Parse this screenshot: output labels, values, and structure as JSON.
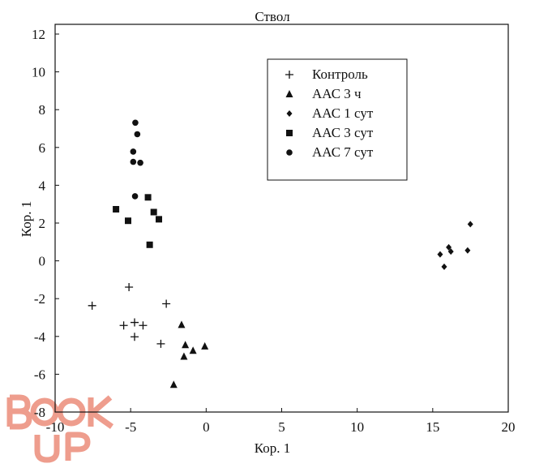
{
  "chart_data": {
    "type": "scatter",
    "title": "Ствол",
    "xlabel": "Кор. 1",
    "ylabel": "Кор. 1",
    "xlim": [
      -10,
      20
    ],
    "ylim": [
      -8,
      12
    ],
    "xticks": [
      -10,
      -5,
      0,
      5,
      10,
      15,
      20
    ],
    "yticks": [
      -8,
      -6,
      -4,
      -2,
      0,
      2,
      4,
      6,
      8,
      10,
      12
    ],
    "grid": false,
    "legend_position": "top-right",
    "series": [
      {
        "name": "Контроль",
        "marker": "plus",
        "x": [
          -5.11,
          -7.55,
          -2.64,
          -5.46,
          -4.74,
          -4.18,
          -4.74,
          -3.0
        ],
        "y": [
          -1.39,
          -2.37,
          -2.27,
          -3.42,
          -3.26,
          -3.42,
          -4.02,
          -4.39
        ]
      },
      {
        "name": "ААС 3 ч",
        "marker": "triangle",
        "x": [
          -1.63,
          -1.38,
          -0.87,
          -0.09,
          -1.47,
          -2.15
        ],
        "y": [
          -3.38,
          -4.45,
          -4.75,
          -4.52,
          -5.06,
          -6.55
        ]
      },
      {
        "name": "ААС 1 сут",
        "marker": "diamond",
        "x": [
          17.49,
          16.06,
          16.2,
          15.49,
          17.31,
          15.76
        ],
        "y": [
          1.94,
          0.72,
          0.49,
          0.34,
          0.55,
          -0.31
        ]
      },
      {
        "name": "ААС 3 сут",
        "marker": "square",
        "x": [
          -3.85,
          -5.97,
          -3.47,
          -3.13,
          -5.17,
          -3.74
        ],
        "y": [
          3.36,
          2.73,
          2.58,
          2.2,
          2.12,
          0.85
        ]
      },
      {
        "name": "ААС 7 сут",
        "marker": "circle",
        "x": [
          -4.69,
          -4.56,
          -4.83,
          -4.83,
          -4.36,
          -4.71
        ],
        "y": [
          7.31,
          6.7,
          5.78,
          5.24,
          5.19,
          3.42
        ]
      }
    ]
  },
  "watermark": {
    "text": "BOOK UP",
    "color": "#e8745e"
  }
}
